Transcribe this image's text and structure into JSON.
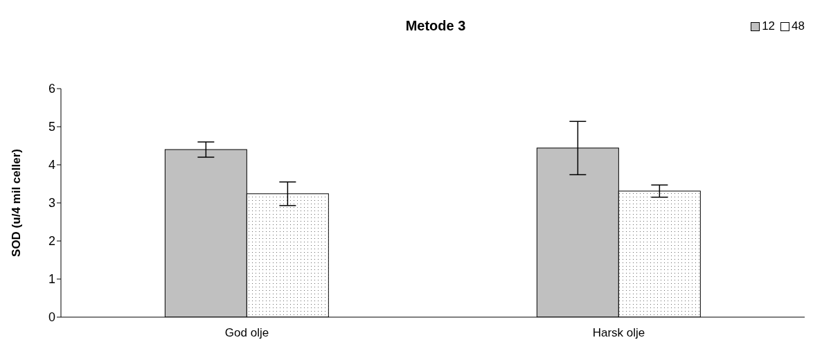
{
  "chart_data": {
    "type": "bar",
    "title": "Metode 3",
    "ylabel": "SOD (u/4 mil celler)",
    "categories": [
      "God olje",
      "Harsk olje"
    ],
    "series": [
      {
        "name": "12",
        "color": "#c0c0c0",
        "values": [
          4.4,
          4.44
        ],
        "errors": [
          0.2,
          0.7
        ]
      },
      {
        "name": "48",
        "color": "#ffffff",
        "values": [
          3.24,
          3.31
        ],
        "errors": [
          0.31,
          0.16
        ]
      }
    ],
    "ylim": [
      0,
      6
    ],
    "yticks": [
      0,
      1,
      2,
      3,
      4,
      5,
      6
    ],
    "legend": "top right"
  }
}
